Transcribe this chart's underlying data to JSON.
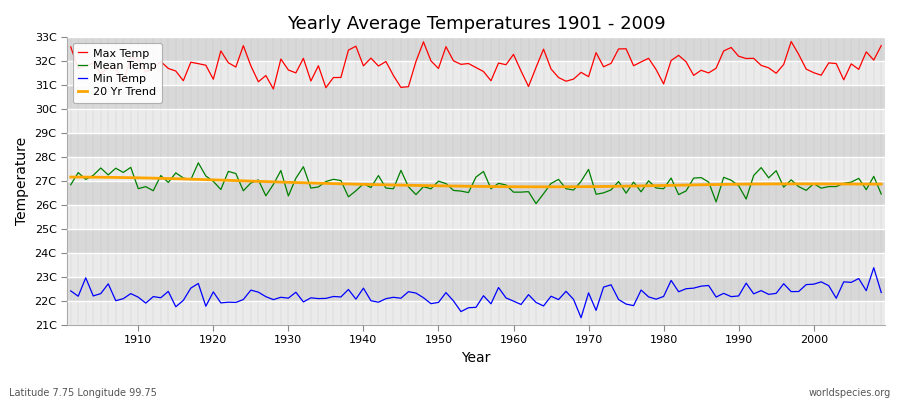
{
  "title": "Yearly Average Temperatures 1901 - 2009",
  "xlabel": "Year",
  "ylabel": "Temperature",
  "footer_left": "Latitude 7.75 Longitude 99.75",
  "footer_right": "worldspecies.org",
  "year_start": 1901,
  "year_end": 2009,
  "ylim": [
    21,
    33
  ],
  "yticks": [
    21,
    22,
    23,
    24,
    25,
    26,
    27,
    28,
    29,
    30,
    31,
    32,
    33
  ],
  "ytick_labels": [
    "21C",
    "22C",
    "23C",
    "24C",
    "25C",
    "26C",
    "27C",
    "28C",
    "29C",
    "30C",
    "31C",
    "32C",
    "33C"
  ],
  "xticks": [
    1910,
    1920,
    1930,
    1940,
    1950,
    1960,
    1970,
    1980,
    1990,
    2000
  ],
  "colors": {
    "max": "#ff0000",
    "mean": "#008000",
    "min": "#0000ff",
    "trend": "#ffa500",
    "bg_light": "#ebebeb",
    "bg_dark": "#d8d8d8",
    "grid_major": "#ffffff",
    "grid_minor": "#cccccc"
  },
  "legend_labels": [
    "Max Temp",
    "Mean Temp",
    "Min Temp",
    "20 Yr Trend"
  ]
}
